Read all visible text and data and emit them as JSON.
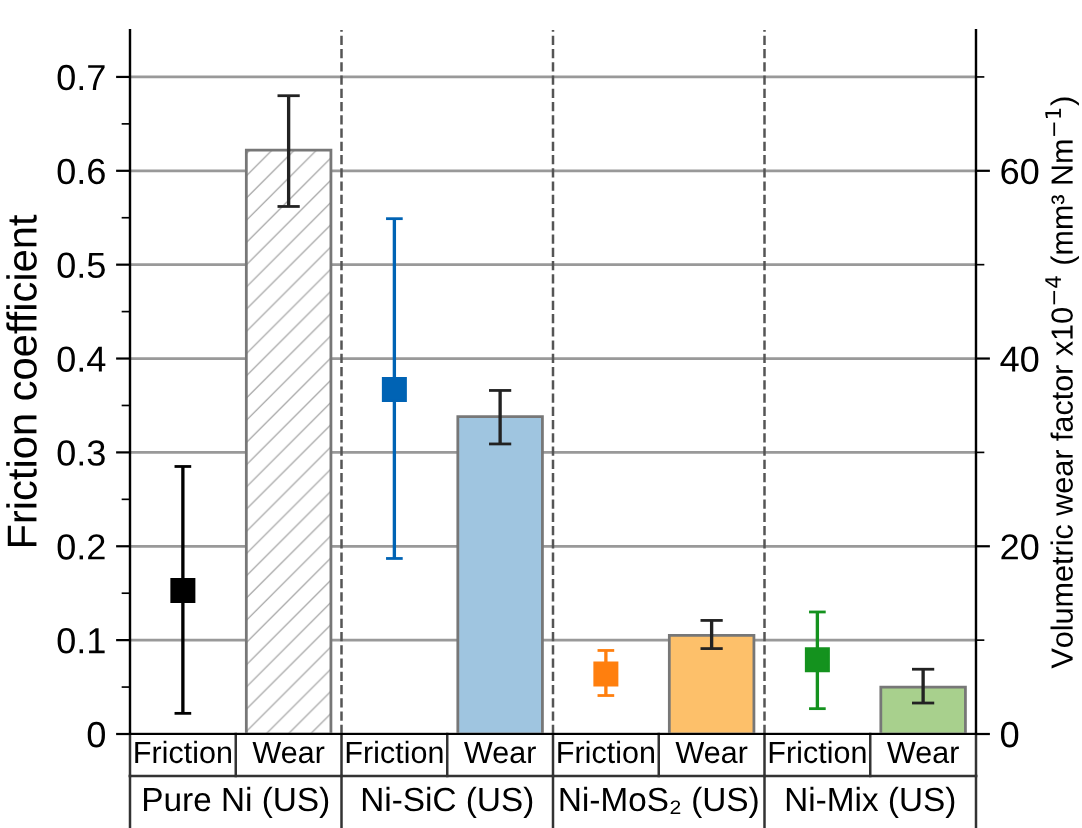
{
  "chart_data": {
    "type": "bar",
    "ylabel": "Friction coefficient",
    "y2label": "Volumetric wear factor x10$^{−4}$ (mm³ Nm$^{−1}$)",
    "categories": [
      "Friction",
      "Wear",
      "Friction",
      "Wear",
      "Friction",
      "Wear",
      "Friction",
      "Wear"
    ],
    "annotations": [
      "Pure Ni (US)",
      "Ni-SiC (US)",
      "Ni-MoS₂ (US)",
      "Ni-Mix (US)"
    ],
    "series": [
      {
        "type": "scatter",
        "marker": "square",
        "values": [
          0.153,
          null,
          0.367,
          null,
          0.064,
          null,
          0.079,
          null
        ],
        "colors": [
          "#000000",
          null,
          "#0063b4",
          null,
          "#ff7f0e",
          null,
          "#14921e",
          null
        ],
        "errors": [
          [
            0.022,
            0.285
          ],
          null,
          [
            0.187,
            0.549
          ],
          null,
          [
            0.041,
            0.089
          ],
          null,
          [
            0.027,
            0.13
          ],
          null
        ]
      },
      {
        "axis": "y2",
        "values": [
          null,
          62.2,
          null,
          33.8,
          null,
          10.5,
          null,
          5.0
        ],
        "colors": [
          null,
          "#ffffff",
          null,
          "#9fc5e0",
          null,
          "#fdc06a",
          null,
          "#a8d08d"
        ],
        "errors": [
          null,
          [
            56.2,
            68.0
          ],
          null,
          [
            30.9,
            36.6
          ],
          null,
          [
            9.1,
            12.1
          ],
          null,
          [
            3.3,
            6.9
          ]
        ]
      }
    ],
    "ylim": [
      0,
      0.75
    ],
    "yticks": [
      0,
      {
        "value": 0.05,
        "label": null
      },
      0.1,
      {
        "value": 0.15,
        "label": null
      },
      0.2,
      {
        "value": 0.25,
        "label": null
      },
      0.3,
      {
        "value": 0.35,
        "label": null
      },
      0.4,
      {
        "value": 0.45,
        "label": null
      },
      0.5,
      {
        "value": 0.55,
        "label": null
      },
      0.6,
      {
        "value": 0.65,
        "label": null
      },
      0.7
    ],
    "y2lim": [
      0,
      75
    ],
    "y2ticks": [
      0,
      {
        "value": 10,
        "label": null
      },
      20,
      {
        "value": 30,
        "label": null
      },
      40,
      {
        "value": 50,
        "label": null
      },
      60,
      {
        "value": 70,
        "label": null
      }
    ],
    "grid": "y",
    "legend": false
  }
}
